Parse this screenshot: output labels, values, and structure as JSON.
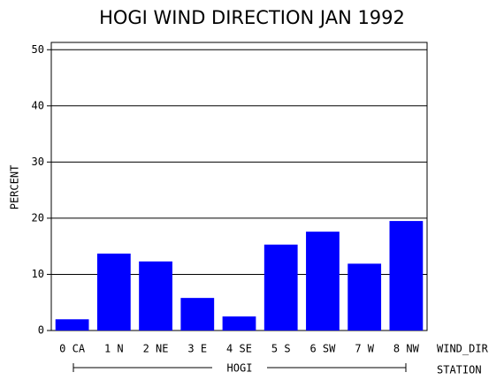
{
  "chart_data": {
    "type": "bar",
    "title": "HOGI WIND DIRECTION JAN 1992",
    "y_label": "PERCENT",
    "x_label": "WIND_DIR",
    "group_label": "HOGI",
    "group_axis_label": "STATION",
    "categories": [
      "0 CA",
      "1 N",
      "2 NE",
      "3 E",
      "4 SE",
      "5 S",
      "6 SW",
      "7 W",
      "8 NW"
    ],
    "values": [
      2.0,
      13.7,
      12.3,
      5.8,
      2.5,
      15.3,
      17.6,
      11.9,
      19.5
    ],
    "color": "#0000ff",
    "ylim": [
      0,
      51.3
    ],
    "yticks": [
      0,
      10,
      20,
      30,
      40,
      50
    ],
    "grid": true
  }
}
